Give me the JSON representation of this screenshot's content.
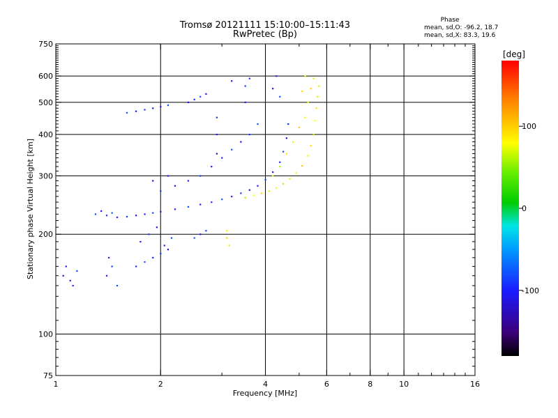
{
  "chart_data": {
    "type": "scatter",
    "title": "Tromsø 20121111 15:10:00–15:11:43",
    "subtitle": "RwPretec (Bp)",
    "xlabel": "Frequency [MHz]",
    "ylabel": "Stationary phase Virtual Height [km]",
    "x_scale": "log",
    "y_scale": "log",
    "xlim": [
      1,
      16
    ],
    "ylim": [
      75,
      750
    ],
    "x_ticks": [
      1,
      2,
      4,
      6,
      8,
      10,
      16
    ],
    "y_ticks": [
      75,
      100,
      200,
      300,
      400,
      500,
      600,
      750
    ],
    "x_tick_labels": [
      "1",
      "2",
      "4",
      "6",
      "8",
      "10",
      "16"
    ],
    "y_tick_labels": [
      "75",
      "100",
      "200",
      "300",
      "400",
      "500",
      "600",
      "750"
    ],
    "x_grid": [
      2,
      4,
      6,
      8,
      10
    ],
    "y_grid": [
      100,
      200,
      300,
      400,
      500,
      600
    ],
    "grid": true,
    "phase_stats": {
      "heading": "Phase",
      "line_o": "mean, sd,O: -96.2, 18.7",
      "line_x": "mean, sd,X:  83.3, 19.6"
    },
    "colorbar": {
      "label": "[deg]",
      "range": [
        -180,
        180
      ],
      "ticks": [
        100,
        0,
        -100
      ],
      "tick_labels": [
        "100",
        "0",
        "-100"
      ]
    },
    "series": [
      {
        "mode": "O",
        "phase_mean": -96.2,
        "phase_sd": 18.7,
        "points": [
          [
            1.05,
            150
          ],
          [
            1.1,
            145
          ],
          [
            1.15,
            155
          ],
          [
            1.07,
            160
          ],
          [
            1.12,
            140
          ],
          [
            1.3,
            230
          ],
          [
            1.35,
            235
          ],
          [
            1.4,
            228
          ],
          [
            1.45,
            232
          ],
          [
            1.5,
            225
          ],
          [
            1.6,
            226
          ],
          [
            1.7,
            228
          ],
          [
            1.8,
            230
          ],
          [
            1.9,
            232
          ],
          [
            2.0,
            234
          ],
          [
            2.2,
            238
          ],
          [
            2.4,
            242
          ],
          [
            2.6,
            246
          ],
          [
            2.8,
            250
          ],
          [
            3.0,
            255
          ],
          [
            3.2,
            260
          ],
          [
            3.4,
            266
          ],
          [
            3.6,
            272
          ],
          [
            3.8,
            280
          ],
          [
            4.0,
            292
          ],
          [
            4.2,
            308
          ],
          [
            4.4,
            330
          ],
          [
            4.5,
            355
          ],
          [
            4.6,
            390
          ],
          [
            4.65,
            430
          ],
          [
            1.6,
            465
          ],
          [
            1.7,
            470
          ],
          [
            1.8,
            475
          ],
          [
            1.9,
            480
          ],
          [
            2.0,
            485
          ],
          [
            2.1,
            490
          ],
          [
            2.4,
            500
          ],
          [
            2.5,
            510
          ],
          [
            2.6,
            520
          ],
          [
            2.7,
            530
          ],
          [
            1.7,
            160
          ],
          [
            1.8,
            165
          ],
          [
            1.9,
            170
          ],
          [
            2.0,
            175
          ],
          [
            2.1,
            180
          ],
          [
            1.75,
            190
          ],
          [
            1.85,
            200
          ],
          [
            1.95,
            210
          ],
          [
            2.05,
            185
          ],
          [
            2.15,
            195
          ],
          [
            1.4,
            150
          ],
          [
            1.45,
            160
          ],
          [
            1.5,
            140
          ],
          [
            1.42,
            170
          ],
          [
            2.0,
            270
          ],
          [
            2.2,
            280
          ],
          [
            2.4,
            290
          ],
          [
            2.6,
            300
          ],
          [
            2.8,
            320
          ],
          [
            3.0,
            340
          ],
          [
            3.2,
            360
          ],
          [
            3.4,
            380
          ],
          [
            3.6,
            400
          ],
          [
            3.8,
            430
          ],
          [
            2.9,
            400
          ],
          [
            2.9,
            450
          ],
          [
            2.9,
            350
          ],
          [
            3.5,
            500
          ],
          [
            3.5,
            560
          ],
          [
            4.2,
            550
          ],
          [
            4.3,
            600
          ],
          [
            4.4,
            520
          ],
          [
            3.2,
            580
          ],
          [
            3.6,
            590
          ],
          [
            2.5,
            195
          ],
          [
            2.6,
            200
          ],
          [
            2.7,
            205
          ],
          [
            1.9,
            290
          ],
          [
            2.1,
            300
          ]
        ]
      },
      {
        "mode": "X",
        "phase_mean": 83.3,
        "phase_sd": 19.6,
        "points": [
          [
            3.5,
            258
          ],
          [
            3.7,
            262
          ],
          [
            3.9,
            266
          ],
          [
            4.1,
            270
          ],
          [
            4.3,
            276
          ],
          [
            4.5,
            284
          ],
          [
            4.7,
            294
          ],
          [
            4.9,
            306
          ],
          [
            5.1,
            322
          ],
          [
            5.3,
            345
          ],
          [
            5.4,
            370
          ],
          [
            5.5,
            400
          ],
          [
            5.55,
            440
          ],
          [
            5.6,
            480
          ],
          [
            5.65,
            520
          ],
          [
            5.3,
            500
          ],
          [
            5.4,
            550
          ],
          [
            5.5,
            590
          ],
          [
            5.2,
            450
          ],
          [
            5.0,
            420
          ],
          [
            4.8,
            380
          ],
          [
            4.6,
            350
          ],
          [
            4.4,
            320
          ],
          [
            4.2,
            300
          ],
          [
            5.1,
            540
          ],
          [
            5.7,
            560
          ],
          [
            5.2,
            600
          ],
          [
            3.1,
            195
          ],
          [
            3.15,
            185
          ],
          [
            3.1,
            205
          ]
        ]
      }
    ]
  }
}
